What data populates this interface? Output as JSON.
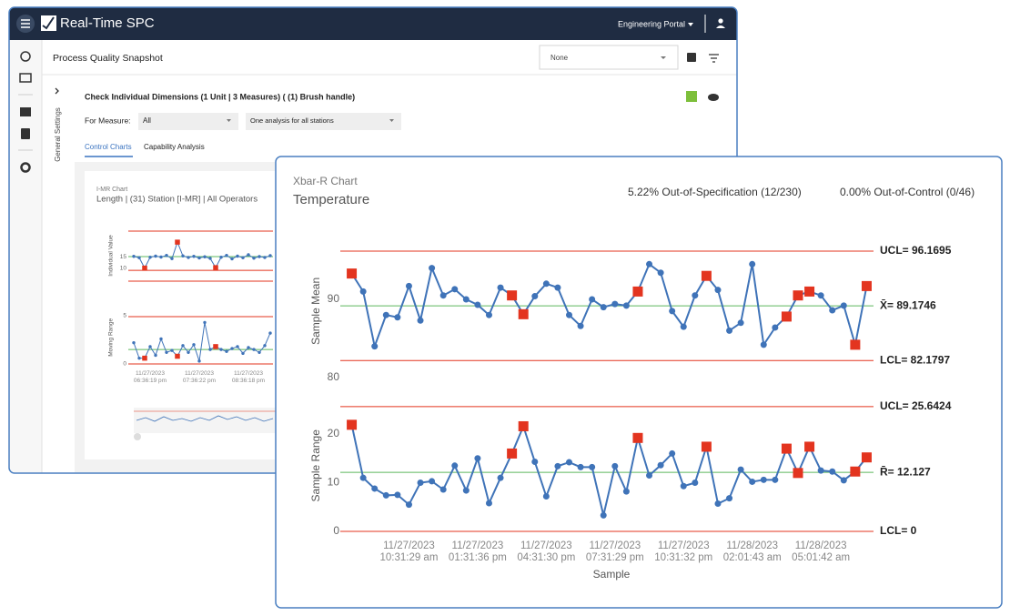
{
  "app": {
    "brand": "Real-Time SPC",
    "portal": "Engineering Portal",
    "page_title": "Process Quality Snapshot",
    "select_value": "None",
    "side_panel": "General Settings"
  },
  "analysis": {
    "title": "Check Individual Dimensions (1 Unit | 3 Measures) ( (1) Brush handle)",
    "measure_label": "For Measure:",
    "measure_value": "All",
    "station_value": "One analysis for all stations",
    "tabs": [
      "Control Charts",
      "Capability Analysis"
    ]
  },
  "chart_data": [
    {
      "type": "line",
      "subtitle": "Xbar-R Chart",
      "title": "Temperature",
      "stats": [
        "5.22% Out-of-Specification (12/230)",
        "0.00% Out-of-Control (0/46)"
      ],
      "xlabel": "Sample",
      "color": "#3f73b8",
      "flag_color": "#e3341f",
      "x": [
        1,
        2,
        3,
        4,
        5,
        6,
        7,
        8,
        9,
        10,
        11,
        12,
        13,
        14,
        15,
        16,
        17,
        18,
        19,
        20,
        21,
        22,
        23,
        24,
        25,
        26,
        27,
        28,
        29,
        30,
        31,
        32,
        33,
        34,
        35,
        36,
        37,
        38,
        39,
        40,
        41,
        42,
        43,
        44,
        45,
        46
      ],
      "xlim": [
        0,
        46.6
      ],
      "xticks": [
        {
          "value": 6,
          "label": "11/27/2023 10:31:29 am"
        },
        {
          "value": 12,
          "label": "11/27/2023 01:31:36 pm"
        },
        {
          "value": 18,
          "label": "11/27/2023 04:31:30 pm"
        },
        {
          "value": 24,
          "label": "11/27/2023 07:31:29 pm"
        },
        {
          "value": 30,
          "label": "11/27/2023 10:31:32 pm"
        },
        {
          "value": 36,
          "label": "11/28/2023 02:01:43 am"
        },
        {
          "value": 42,
          "label": "11/28/2023 05:01:42 am"
        }
      ],
      "flagged": [
        0,
        14,
        15,
        25,
        31,
        38,
        39,
        40,
        44,
        45
      ],
      "panels": [
        {
          "ylabel": "Sample Mean",
          "ylim": [
            79.5,
            97.5
          ],
          "yticks": [
            80,
            90
          ],
          "limits": [
            {
              "value": 96.1695,
              "label": "UCL= 96.1695",
              "color": "#e3341f"
            },
            {
              "value": 89.1746,
              "label": "X̄= 89.1746",
              "color": "#5cb85c"
            },
            {
              "value": 82.1797,
              "label": "LCL= 82.1797",
              "color": "#e3341f"
            }
          ],
          "values": [
            93.3,
            91.0,
            84.0,
            88.0,
            87.7,
            91.7,
            87.3,
            94.0,
            90.5,
            91.3,
            90.0,
            89.3,
            88.0,
            91.5,
            90.5,
            88.1,
            90.4,
            92.0,
            91.5,
            88.0,
            86.6,
            90.0,
            89.0,
            89.4,
            89.2,
            91.0,
            94.5,
            93.4,
            88.5,
            86.5,
            90.5,
            93.0,
            91.2,
            86.0,
            87.0,
            94.5,
            84.2,
            86.4,
            87.8,
            90.5,
            91.0,
            90.5,
            88.6,
            89.2,
            84.2,
            91.7
          ]
        },
        {
          "ylabel": "Sample Range",
          "ylim": [
            -0.5,
            27.5
          ],
          "yticks": [
            0,
            10,
            20
          ],
          "limits": [
            {
              "value": 25.6424,
              "label": "UCL= 25.6424",
              "color": "#e3341f"
            },
            {
              "value": 12.127,
              "label": "R̄= 12.127",
              "color": "#5cb85c"
            },
            {
              "value": 0,
              "label": "LCL= 0",
              "color": "#e3341f"
            }
          ],
          "values": [
            21.9,
            11.0,
            8.8,
            7.4,
            7.5,
            5.5,
            10.0,
            10.3,
            8.6,
            13.5,
            8.4,
            15.0,
            5.8,
            11.0,
            16.0,
            21.6,
            14.3,
            7.2,
            13.4,
            14.2,
            13.2,
            13.2,
            3.3,
            13.4,
            8.2,
            19.2,
            11.5,
            13.6,
            16.0,
            9.3,
            10.0,
            17.4,
            5.7,
            6.8,
            12.7,
            10.2,
            10.6,
            10.6,
            17.0,
            12.0,
            17.4,
            12.5,
            12.3,
            10.5,
            12.3,
            15.2
          ]
        }
      ]
    },
    {
      "type": "line",
      "subtitle": "I-MR Chart",
      "title": "Length | (31) Station [I-MR] | All Operators",
      "color": "#3f73b8",
      "flag_color": "#e3341f",
      "x": [
        1,
        2,
        3,
        4,
        5,
        6,
        7,
        8,
        9,
        10,
        11,
        12,
        13,
        14,
        15,
        16,
        17,
        18,
        19,
        20,
        21,
        22,
        23,
        24,
        25,
        26
      ],
      "xlim": [
        0,
        26.5
      ],
      "xticks": [
        {
          "value": 4,
          "label": "11/27/2023 06:36:19 pm"
        },
        {
          "value": 13,
          "label": "11/27/2023 07:36:22 pm"
        },
        {
          "value": 22,
          "label": "11/27/2023 08:36:18 pm"
        }
      ],
      "flagged": [
        2,
        8,
        15
      ],
      "panels": [
        {
          "ylabel": "Individual Value",
          "ylim": [
            3,
            28
          ],
          "yticks": [
            10,
            15
          ],
          "limits": [
            {
              "value": 26.4,
              "color": "#e3341f"
            },
            {
              "value": 15.1,
              "color": "#5cb85c"
            },
            {
              "value": 9.0,
              "color": "#e3341f"
            },
            {
              "value": 4.2,
              "color": "#e3341f"
            }
          ],
          "values": [
            15.2,
            14.6,
            10.0,
            14.8,
            15.3,
            14.9,
            15.6,
            14.2,
            21.5,
            15.4,
            14.7,
            15.2,
            14.5,
            15.0,
            14.3,
            10.2,
            14.8,
            15.6,
            14.1,
            15.3,
            14.6,
            15.9,
            14.4,
            15.1,
            14.7,
            15.5
          ]
        },
        {
          "ylabel": "Moving Range",
          "ylim": [
            0,
            5.5
          ],
          "yticks": [
            0,
            5
          ],
          "limits": [
            {
              "value": 4.9,
              "color": "#e3341f"
            },
            {
              "value": 1.5,
              "color": "#5cb85c"
            },
            {
              "value": 0,
              "color": "#e3341f"
            }
          ],
          "values": [
            2.2,
            0.6,
            0.6,
            1.8,
            0.9,
            2.6,
            1.2,
            1.4,
            0.8,
            1.9,
            1.2,
            2.0,
            0.3,
            4.3,
            1.5,
            1.8,
            1.5,
            1.3,
            1.6,
            1.8,
            1.1,
            1.7,
            1.5,
            1.2,
            1.9,
            3.2
          ]
        }
      ]
    }
  ]
}
